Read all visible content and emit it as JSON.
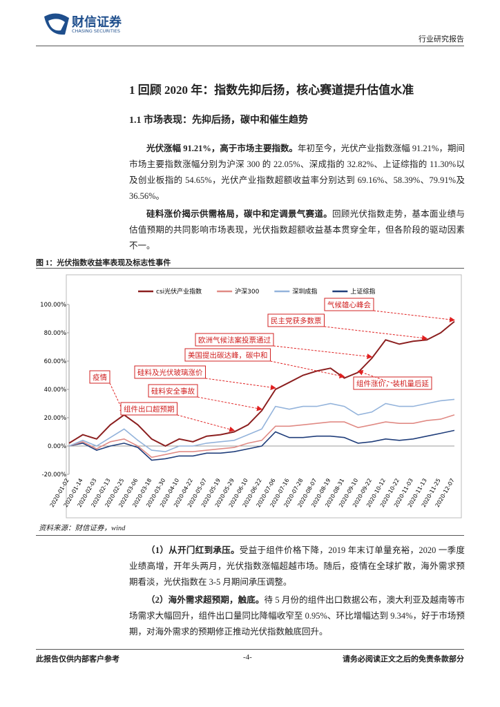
{
  "header": {
    "brand": "财信证券",
    "brand_en": "CHASING SECURITIES",
    "report_type": "行业研究报告"
  },
  "heading": "1 回顾 2020 年：指数先抑后扬，核心赛道提升估值水准",
  "subheading": "1.1 市场表现：先抑后扬，碳中和催生趋势",
  "paragraphs": [
    {
      "lead": "光伏涨幅 91.21%，高于市场主要指数。",
      "text": "年初至今，光伏产业指数涨幅 91.21%，期间市场主要指数涨幅分别为沪深 300 的 22.05%、深成指的 32.82%、上证综指的 11.30%以及创业板指的 54.65%，光伏产业指数超额收益率分别达到 69.16%、58.39%、79.91%及 36.56%。"
    },
    {
      "lead": "硅料涨价揭示供需格局，碳中和定调景气赛道。",
      "text": "回顾光伏指数走势，基本面业绩与估值预期的共同影响市场表现，光伏指数超额收益基本贯穿全年，但各阶段的驱动因素不一。"
    }
  ],
  "figure_caption": "图 1：光伏指数收益率表现及标志性事件",
  "chart_data": {
    "type": "line",
    "x": [
      "2020-01-02",
      "2020-01-14",
      "2020-02-03",
      "2020-02-13",
      "2020-02-25",
      "2020-03-06",
      "2020-03-18",
      "2020-03-30",
      "2020-04-10",
      "2020-04-22",
      "2020-05-07",
      "2020-05-19",
      "2020-05-29",
      "2020-06-10",
      "2020-06-22",
      "2020-07-06",
      "2020-07-16",
      "2020-07-28",
      "2020-08-07",
      "2020-08-19",
      "2020-08-31",
      "2020-09-10",
      "2020-09-22",
      "2020-10-12",
      "2020-10-22",
      "2020-11-03",
      "2020-11-13",
      "2020-11-25",
      "2020-12-07"
    ],
    "series": [
      {
        "name": "csi光伏产业指数",
        "color": "#8b1f1f",
        "values": [
          2,
          8,
          5,
          15,
          22,
          15,
          5,
          0,
          5,
          3,
          7,
          8,
          10,
          15,
          25,
          40,
          45,
          50,
          53,
          55,
          48,
          52,
          62,
          75,
          72,
          74,
          75,
          80,
          88
        ]
      },
      {
        "name": "沪深300",
        "color": "#e08a84",
        "values": [
          0,
          3,
          -2,
          3,
          5,
          0,
          -8,
          -6,
          -4,
          -4,
          -3,
          -2,
          -1,
          2,
          4,
          14,
          14,
          15,
          16,
          17,
          17,
          13,
          15,
          17,
          16,
          16,
          18,
          19,
          22
        ]
      },
      {
        "name": "深圳成指",
        "color": "#93b3db",
        "values": [
          0,
          4,
          0,
          6,
          12,
          4,
          -3,
          -4,
          0,
          0,
          2,
          3,
          4,
          8,
          12,
          28,
          26,
          28,
          28,
          30,
          28,
          22,
          24,
          30,
          28,
          28,
          30,
          32,
          33
        ]
      },
      {
        "name": "上证综指",
        "color": "#1f3d7a",
        "values": [
          0,
          2,
          -3,
          0,
          2,
          -1,
          -10,
          -9,
          -7,
          -7,
          -5,
          -5,
          -4,
          -2,
          0,
          10,
          6,
          6,
          7,
          7,
          6,
          2,
          3,
          5,
          4,
          5,
          7,
          9,
          11
        ]
      }
    ],
    "ylim": [
      -20,
      100
    ],
    "yticks": [
      {
        "value": -20,
        "label": "-20.00%"
      },
      {
        "value": 0,
        "label": "0.00%"
      },
      {
        "value": 20,
        "label": "20.00%"
      },
      {
        "value": 40,
        "label": "40.00%"
      },
      {
        "value": 60,
        "label": "60.00%"
      },
      {
        "value": 80,
        "label": "80.00%"
      },
      {
        "value": 100,
        "label": "100.00%"
      }
    ],
    "annotations": [
      "气候雄心峰会",
      "民主党获多数票",
      "欧洲气候法案投票通过",
      "美国提出碳达峰，碳中和",
      "硅料及光伏玻璃涨价",
      "疫情",
      "硅料安全事故",
      "组件出口超预期",
      "组件涨价，装机量后延"
    ]
  },
  "source": "资料来源：财信证券，wind",
  "points": [
    {
      "lead": "（1）从开门红到承压。",
      "text": "受益于组件价格下降，2019 年末订单量充裕，2020 一季度业绩高增，开年头两月，光伏指数涨幅超越市场。随后，疫情在全球扩散，海外需求预期看淡，光伏指数在 3-5 月期间承压调整。"
    },
    {
      "lead": "（2）海外需求超预期，触底。",
      "text": "待 5 月份的组件出口数据公布，澳大利亚及越南等市场需求大幅回升，组件出口量同比降幅收窄至 0.95%、环比增幅达到 9.34%，好于市场预期，对海外需求的预期修正推动光伏指数触底回升。"
    }
  ],
  "footer": {
    "left": "此报告仅供内部客户参考",
    "page": "-4-",
    "right": "请务必阅读正文之后的免责条款部分"
  }
}
